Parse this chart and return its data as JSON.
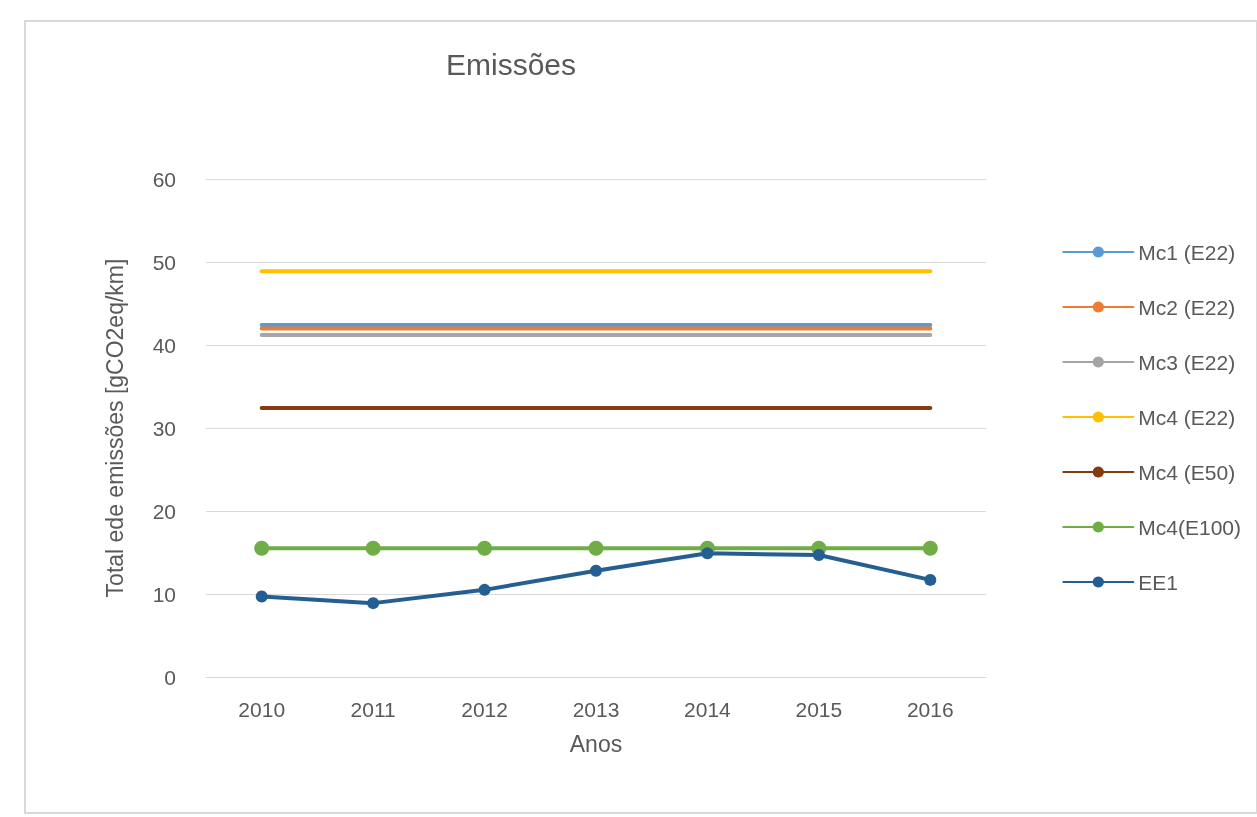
{
  "chart_data": {
    "type": "line",
    "title": "Emissões",
    "xlabel": "Anos",
    "ylabel": "Total ede emissões [gCO2eq/km]",
    "categories": [
      "2010",
      "2011",
      "2012",
      "2013",
      "2014",
      "2015",
      "2016"
    ],
    "series": [
      {
        "name": "Mc1 (E22)",
        "color": "#5b9bd5",
        "marker": "none",
        "values": [
          42.4,
          42.4,
          42.4,
          42.4,
          42.4,
          42.4,
          42.4
        ]
      },
      {
        "name": "Mc2 (E22)",
        "color": "#ed7d31",
        "marker": "none",
        "values": [
          42.0,
          42.0,
          42.0,
          42.0,
          42.0,
          42.0,
          42.0
        ]
      },
      {
        "name": "Mc3 (E22)",
        "color": "#a5a5a5",
        "marker": "none",
        "values": [
          41.2,
          41.2,
          41.2,
          41.2,
          41.2,
          41.2,
          41.2
        ]
      },
      {
        "name": "Mc4 (E22)",
        "color": "#ffc000",
        "marker": "none",
        "values": [
          48.9,
          48.9,
          48.9,
          48.9,
          48.9,
          48.9,
          48.9
        ]
      },
      {
        "name": "Mc4 (E50)",
        "color": "#843c0c",
        "marker": "none",
        "values": [
          32.4,
          32.4,
          32.4,
          32.4,
          32.4,
          32.4,
          32.4
        ]
      },
      {
        "name": "Mc4(E100)",
        "color": "#70ad47",
        "marker": "circle",
        "values": [
          15.5,
          15.5,
          15.5,
          15.5,
          15.5,
          15.5,
          15.5
        ]
      },
      {
        "name": "EE1",
        "color": "#255e91",
        "marker": "circle",
        "values": [
          9.7,
          8.9,
          10.5,
          12.8,
          14.9,
          14.7,
          11.7
        ]
      }
    ],
    "ylim": [
      0,
      60
    ],
    "yticks": [
      0,
      10,
      20,
      30,
      40,
      50,
      60
    ],
    "grid": "y",
    "legend": "right",
    "line_style": "solid"
  }
}
